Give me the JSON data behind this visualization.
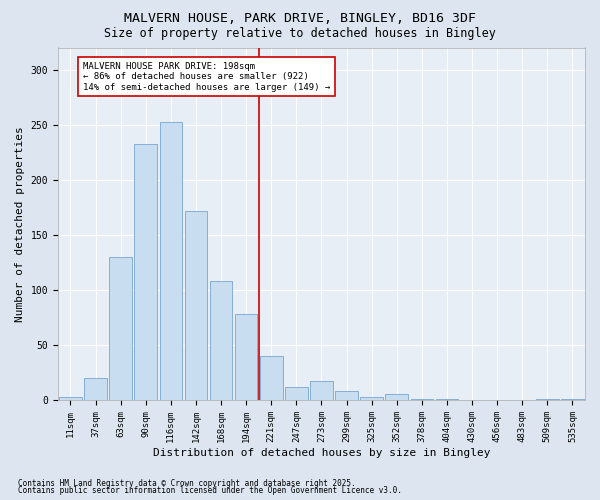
{
  "title": "MALVERN HOUSE, PARK DRIVE, BINGLEY, BD16 3DF",
  "subtitle": "Size of property relative to detached houses in Bingley",
  "xlabel": "Distribution of detached houses by size in Bingley",
  "ylabel": "Number of detached properties",
  "bar_labels": [
    "11sqm",
    "37sqm",
    "63sqm",
    "90sqm",
    "116sqm",
    "142sqm",
    "168sqm",
    "194sqm",
    "221sqm",
    "247sqm",
    "273sqm",
    "299sqm",
    "325sqm",
    "352sqm",
    "378sqm",
    "404sqm",
    "430sqm",
    "456sqm",
    "483sqm",
    "509sqm",
    "535sqm"
  ],
  "bar_heights": [
    3,
    20,
    130,
    232,
    252,
    172,
    108,
    78,
    40,
    12,
    17,
    8,
    3,
    5,
    1,
    1,
    0,
    0,
    0,
    1,
    1
  ],
  "bar_color": "#c9ddf0",
  "bar_edge_color": "#6699cc",
  "vline_x": 7.5,
  "vline_color": "#cc0000",
  "annotation_title": "MALVERN HOUSE PARK DRIVE: 198sqm",
  "annotation_line1": "← 86% of detached houses are smaller (922)",
  "annotation_line2": "14% of semi-detached houses are larger (149) →",
  "annotation_box_color": "#cc0000",
  "ylim": [
    0,
    320
  ],
  "yticks": [
    0,
    50,
    100,
    150,
    200,
    250,
    300
  ],
  "footer1": "Contains HM Land Registry data © Crown copyright and database right 2025.",
  "footer2": "Contains public sector information licensed under the Open Government Licence v3.0.",
  "bg_color": "#dde6f0",
  "plot_bg_color": "#e8eef6",
  "grid_color": "#ffffff",
  "title_fontsize": 9.5,
  "subtitle_fontsize": 8.5,
  "tick_fontsize": 6.5,
  "label_fontsize": 8,
  "footer_fontsize": 5.5
}
